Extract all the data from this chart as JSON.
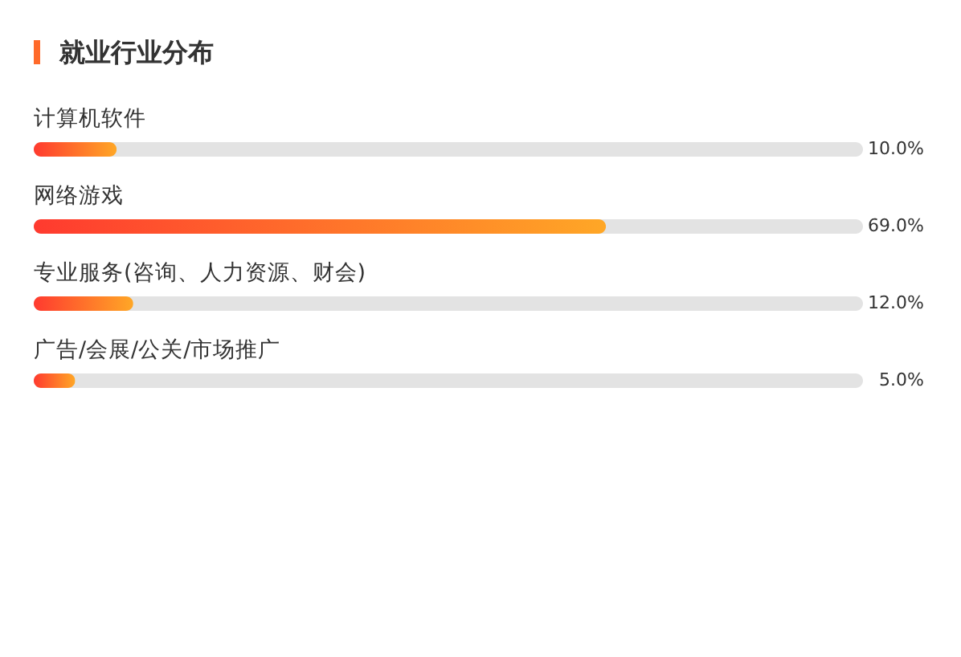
{
  "chart_data": {
    "type": "bar",
    "orientation": "horizontal",
    "title": "就业行业分布",
    "categories": [
      "计算机软件",
      "网络游戏",
      "专业服务(咨询、人力资源、财会)",
      "广告/会展/公关/市场推广"
    ],
    "values": [
      10,
      69,
      12,
      5
    ],
    "value_labels": [
      "10.0%",
      "69.0%",
      "12.0%",
      "5.0%"
    ],
    "color": "#ff3a2f",
    "xlim": [
      0,
      100
    ],
    "tick_labels": "y"
  }
}
